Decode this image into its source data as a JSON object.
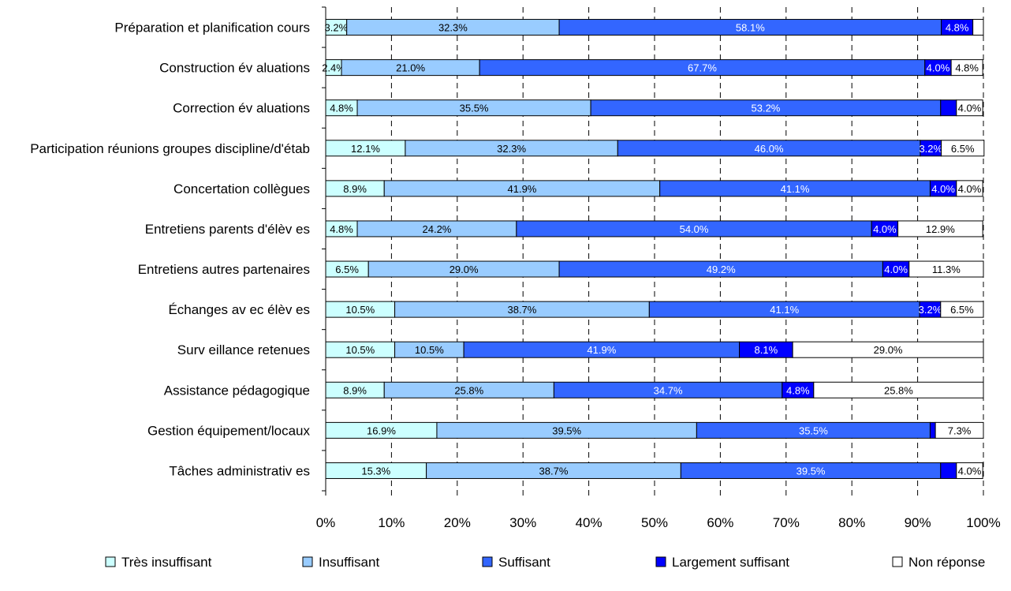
{
  "chart_data": {
    "type": "bar",
    "orientation": "horizontal",
    "stacked": "percent",
    "title": "",
    "xlabel": "",
    "ylabel": "",
    "xlim": [
      0,
      100
    ],
    "x_ticks": [
      "0%",
      "10%",
      "20%",
      "30%",
      "40%",
      "50%",
      "60%",
      "70%",
      "80%",
      "90%",
      "100%"
    ],
    "grid": "vertical dashed",
    "legend_position": "bottom",
    "categories": [
      "Préparation et planification cours",
      "Construction év aluations",
      "Correction év aluations",
      "Participation réunions groupes discipline/d'étab",
      "Concertation collègues",
      "Entretiens parents d'élèv es",
      "Entretiens autres partenaires",
      "Échanges av ec élèv es",
      "Surv eillance retenues",
      "Assistance pédagogique",
      "Gestion équipement/locaux",
      "Tâches administrativ es"
    ],
    "series": [
      {
        "name": "Très insuffisant",
        "color": "#CCFFFF",
        "label_color": "#000000",
        "values": [
          3.2,
          2.4,
          4.8,
          12.1,
          8.9,
          4.8,
          6.5,
          10.5,
          10.5,
          8.9,
          16.9,
          15.3
        ],
        "labels": [
          "3.2%",
          "2.4%",
          "4.8%",
          "12.1%",
          "8.9%",
          "4.8%",
          "6.5%",
          "10.5%",
          "10.5%",
          "8.9%",
          "16.9%",
          "15.3%"
        ]
      },
      {
        "name": "Insuffisant",
        "color": "#99CCFF",
        "label_color": "#000000",
        "values": [
          32.3,
          21.0,
          35.5,
          32.3,
          41.9,
          24.2,
          29.0,
          38.7,
          10.5,
          25.8,
          39.5,
          38.7
        ],
        "labels": [
          "32.3%",
          "21.0%",
          "35.5%",
          "32.3%",
          "41.9%",
          "24.2%",
          "29.0%",
          "38.7%",
          "10.5%",
          "25.8%",
          "39.5%",
          "38.7%"
        ]
      },
      {
        "name": "Suffisant",
        "color": "#3366FF",
        "label_color": "#FFFFFF",
        "values": [
          58.1,
          67.7,
          53.2,
          46.0,
          41.1,
          54.0,
          49.2,
          41.1,
          41.9,
          34.7,
          35.5,
          39.5
        ],
        "labels": [
          "58.1%",
          "67.7%",
          "53.2%",
          "46.0%",
          "41.1%",
          "54.0%",
          "49.2%",
          "41.1%",
          "41.9%",
          "34.7%",
          "35.5%",
          "39.5%"
        ]
      },
      {
        "name": "Largement suffisant",
        "color": "#0000FF",
        "label_color": "#FFFFFF",
        "values": [
          4.8,
          4.0,
          2.4,
          3.2,
          4.0,
          4.0,
          4.0,
          3.2,
          8.1,
          4.8,
          0.8,
          2.4
        ],
        "labels": [
          "4.8%",
          "4.0%",
          "",
          "3.2%",
          "4.0%",
          "4.0%",
          "4.0%",
          "3.2%",
          "8.1%",
          "4.8%",
          "",
          ""
        ]
      },
      {
        "name": "Non réponse",
        "color": "#FFFFFF",
        "label_color": "#000000",
        "values": [
          1.6,
          4.8,
          4.0,
          6.5,
          4.0,
          12.9,
          11.3,
          6.5,
          29.0,
          25.8,
          7.3,
          4.0
        ],
        "labels": [
          "",
          "4.8%",
          "4.0%",
          "6.5%",
          "4.0%",
          "12.9%",
          "11.3%",
          "6.5%",
          "29.0%",
          "25.8%",
          "7.3%",
          "4.0%"
        ]
      }
    ]
  }
}
